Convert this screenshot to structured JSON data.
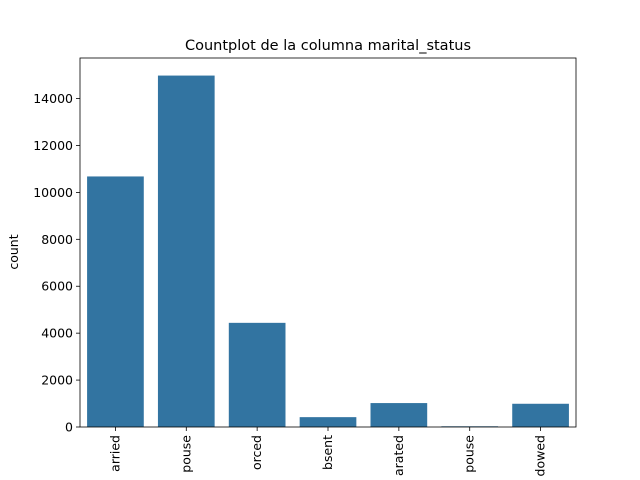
{
  "chart_data": {
    "type": "bar",
    "title": "Countplot de la columna marital_status",
    "xlabel": "",
    "ylabel": "count",
    "categories": [
      "arried",
      "pouse",
      "orced",
      "bsent",
      "arated",
      "pouse",
      "dowed"
    ],
    "values": [
      10680,
      14980,
      4440,
      420,
      1020,
      30,
      990
    ],
    "ylim": [
      0,
      15729
    ],
    "yticks": [
      0,
      2000,
      4000,
      6000,
      8000,
      10000,
      12000,
      14000
    ],
    "bar_color": "#3274a1",
    "grid": false,
    "legend": "none"
  }
}
